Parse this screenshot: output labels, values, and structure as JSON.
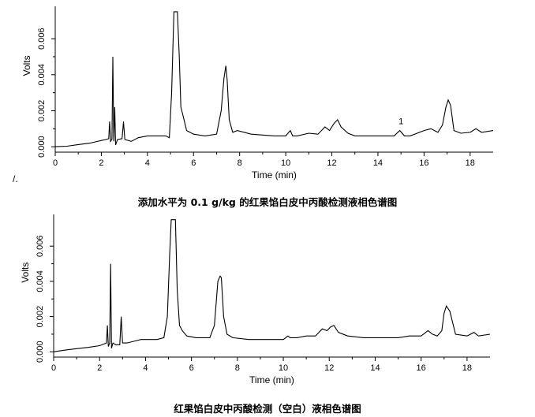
{
  "stray_mark": "/.",
  "chart_data": [
    {
      "type": "line",
      "caption": "添加水平为 0.1 g/kg 的红果馅白皮中丙酸检测液相色谱图",
      "xlabel": "Time (min)",
      "ylabel": "Volts",
      "xlim": [
        0,
        19
      ],
      "ylim": [
        -0.0003,
        0.0078
      ],
      "xticks": [
        0,
        2,
        4,
        6,
        8,
        10,
        12,
        14,
        16,
        18
      ],
      "xtick_labels": [
        "0",
        "2",
        "4",
        "6",
        "8",
        "10",
        "12",
        "14",
        "16",
        "18"
      ],
      "yticks": [
        0,
        0.002,
        0.004,
        0.006
      ],
      "ytick_labels": [
        "0.000",
        "0.002",
        "0.004",
        "0.006"
      ],
      "annotations": [
        {
          "text": "1",
          "x": 15.0,
          "y": 0.00125
        }
      ],
      "series": [
        {
          "x": [
            0,
            0.5,
            1.0,
            1.5,
            2.0,
            2.2,
            2.32,
            2.36,
            2.4,
            2.46,
            2.5,
            2.54,
            2.58,
            2.62,
            2.7,
            2.9,
            2.96,
            3.02,
            3.3,
            3.6,
            3.8,
            4.0,
            4.5,
            4.8,
            4.95,
            5.05,
            5.15,
            5.22,
            5.3,
            5.38,
            5.45,
            5.55,
            5.7,
            6.0,
            6.5,
            7.0,
            7.2,
            7.32,
            7.4,
            7.46,
            7.55,
            7.7,
            7.9,
            8.5,
            9.0,
            9.5,
            10.0,
            10.2,
            10.3,
            10.5,
            11.0,
            11.4,
            11.7,
            11.9,
            12.1,
            12.25,
            12.4,
            12.7,
            13.0,
            14.0,
            14.7,
            14.95,
            15.15,
            15.4,
            16.0,
            16.3,
            16.6,
            16.8,
            16.95,
            17.05,
            17.15,
            17.3,
            17.6,
            18.0,
            18.25,
            18.5,
            19.0
          ],
          "y": [
            0.0,
            3e-05,
            0.00012,
            0.0002,
            0.00035,
            0.0004,
            0.00045,
            0.0014,
            0.0003,
            0.00042,
            0.005,
            0.0003,
            0.0022,
            0.0001,
            0.0004,
            0.00045,
            0.0014,
            0.0004,
            0.0003,
            0.0005,
            0.00055,
            0.0006,
            0.0006,
            0.0006,
            0.0005,
            0.003,
            0.0075,
            0.0075,
            0.0075,
            0.005,
            0.0022,
            0.0017,
            0.0009,
            0.0007,
            0.0006,
            0.0007,
            0.002,
            0.0038,
            0.0045,
            0.0037,
            0.0015,
            0.0008,
            0.0009,
            0.0007,
            0.00065,
            0.0006,
            0.0006,
            0.0009,
            0.0006,
            0.0006,
            0.00075,
            0.0007,
            0.0011,
            0.0009,
            0.0013,
            0.0015,
            0.0011,
            0.00075,
            0.0006,
            0.0006,
            0.0006,
            0.0009,
            0.0006,
            0.0006,
            0.0009,
            0.001,
            0.0008,
            0.0012,
            0.0022,
            0.0026,
            0.0023,
            0.0009,
            0.00075,
            0.0008,
            0.001,
            0.0008,
            0.0009
          ]
        }
      ]
    },
    {
      "type": "line",
      "caption": "红果馅白皮中丙酸检测（空白）液相色谱图",
      "xlabel": "Time (min)",
      "ylabel": "Volts",
      "xlim": [
        0,
        19
      ],
      "ylim": [
        -0.0003,
        0.0078
      ],
      "xticks": [
        0,
        2,
        4,
        6,
        8,
        10,
        12,
        14,
        16,
        18
      ],
      "xtick_labels": [
        "0",
        "2",
        "4",
        "6",
        "8",
        "10",
        "12",
        "14",
        "16",
        "18"
      ],
      "yticks": [
        0,
        0.002,
        0.004,
        0.006
      ],
      "ytick_labels": [
        "0.000",
        "0.002",
        "0.004",
        "0.006"
      ],
      "annotations": [],
      "series": [
        {
          "x": [
            0,
            0.5,
            1.0,
            1.5,
            2.0,
            2.2,
            2.3,
            2.34,
            2.38,
            2.44,
            2.48,
            2.52,
            2.58,
            2.7,
            2.88,
            2.94,
            3.0,
            3.2,
            3.5,
            3.8,
            4.0,
            4.5,
            4.8,
            4.95,
            5.05,
            5.12,
            5.2,
            5.3,
            5.38,
            5.48,
            5.6,
            5.8,
            6.2,
            6.8,
            7.0,
            7.15,
            7.25,
            7.3,
            7.4,
            7.55,
            7.8,
            8.5,
            9.0,
            9.5,
            10.0,
            10.2,
            10.3,
            10.6,
            11.0,
            11.4,
            11.7,
            11.9,
            12.05,
            12.2,
            12.4,
            12.8,
            13.5,
            14.0,
            14.5,
            15.0,
            15.5,
            16.0,
            16.3,
            16.5,
            16.7,
            16.9,
            17.0,
            17.1,
            17.25,
            17.5,
            18.0,
            18.3,
            18.5,
            19.0
          ],
          "y": [
            0.0,
            0.0001,
            0.00018,
            0.00025,
            0.00035,
            0.00045,
            0.0005,
            0.0015,
            0.0003,
            0.0005,
            0.005,
            0.0002,
            0.0005,
            0.0004,
            0.0004,
            0.002,
            0.0005,
            0.0005,
            0.0006,
            0.0007,
            0.0007,
            0.0007,
            0.0008,
            0.002,
            0.0055,
            0.0075,
            0.0075,
            0.0075,
            0.0035,
            0.0015,
            0.0012,
            0.0009,
            0.0008,
            0.0008,
            0.0015,
            0.004,
            0.0043,
            0.0042,
            0.002,
            0.001,
            0.0008,
            0.0007,
            0.0007,
            0.0007,
            0.0007,
            0.0009,
            0.0008,
            0.0008,
            0.0009,
            0.0009,
            0.0013,
            0.0012,
            0.0014,
            0.0015,
            0.0011,
            0.0009,
            0.0008,
            0.0008,
            0.0008,
            0.0008,
            0.0009,
            0.0009,
            0.0012,
            0.001,
            0.0009,
            0.0012,
            0.0022,
            0.0026,
            0.0023,
            0.001,
            0.0009,
            0.0011,
            0.0009,
            0.001
          ]
        }
      ]
    }
  ]
}
